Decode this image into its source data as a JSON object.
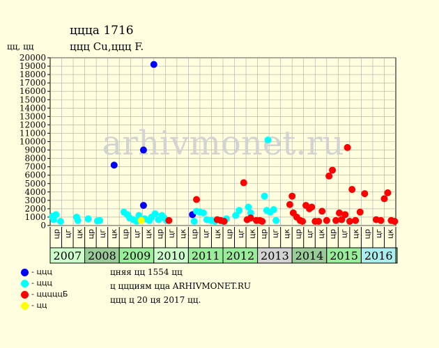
{
  "page": {
    "title_line1": "ццца 1716",
    "title_line2": "ццц Cu,ццц F.",
    "y_unit": "цц, цц",
    "watermark": "arhivmonet.ru"
  },
  "legend": [
    {
      "label": "- ццц",
      "color": "#0000FF"
    },
    {
      "label": "- ццц",
      "color": "#00FFFF"
    },
    {
      "label": "- цццццБ",
      "color": "#FF0000"
    },
    {
      "label": "- цц",
      "color": "#FFFF00"
    }
  ],
  "info": [
    "цняя цц 1554 цц",
    "ц ццциям цца ARHIVMONET.RU",
    "ццц ц 20 ця 2017 цц."
  ],
  "colors": {
    "background": "#FFFFE0",
    "watermark": "#D3D3D3",
    "grid": "#A9A9A9"
  },
  "chart_data": {
    "type": "scatter",
    "ylim": [
      0,
      20000
    ],
    "yticks": [
      0,
      1000,
      2000,
      3000,
      4000,
      5000,
      6000,
      7000,
      8000,
      9000,
      10000,
      11000,
      12000,
      13000,
      14000,
      15000,
      16000,
      17000,
      18000,
      19000,
      20000
    ],
    "grid": true,
    "legend_position": "bottom-left",
    "x_axis": {
      "months": [
        "цр",
        "цг",
        "цк",
        "цр",
        "цг",
        "цк",
        "цр",
        "цг",
        "цк",
        "цр",
        "цг",
        "цк",
        "цр",
        "цг",
        "цк",
        "цр",
        "цг",
        "цк",
        "цр",
        "цг",
        "цк",
        "цр",
        "цг",
        "цк",
        "цр",
        "цг",
        "цк",
        "цр",
        "цг",
        "цк"
      ],
      "years": [
        {
          "label": "2007",
          "color": "#CCFFCC"
        },
        {
          "label": "2008",
          "color": "#99CC99"
        },
        {
          "label": "2009",
          "color": "#99EE99"
        },
        {
          "label": "2010",
          "color": "#CCFFCC"
        },
        {
          "label": "2011",
          "color": "#99EE99"
        },
        {
          "label": "2012",
          "color": "#99EE99"
        },
        {
          "label": "2013",
          "color": "#D3D3D3"
        },
        {
          "label": "2014",
          "color": "#99CC99"
        },
        {
          "label": "2015",
          "color": "#99EE99"
        },
        {
          "label": "2016",
          "color": "#AAEEEE"
        }
      ]
    },
    "series": [
      {
        "color": "#0000FF",
        "points": [
          [
            5.55,
            7200
          ],
          [
            9.0,
            19200
          ],
          [
            8.1,
            9000
          ],
          [
            8.1,
            2400
          ],
          [
            12.35,
            1300
          ]
        ]
      },
      {
        "color": "#00FFFF",
        "points": [
          [
            0.2,
            1100
          ],
          [
            0.5,
            1300
          ],
          [
            0.3,
            700
          ],
          [
            0.9,
            500
          ],
          [
            2.3,
            1000
          ],
          [
            2.4,
            600
          ],
          [
            3.3,
            800
          ],
          [
            4.1,
            550
          ],
          [
            4.3,
            600
          ],
          [
            6.4,
            1600
          ],
          [
            6.7,
            1300
          ],
          [
            6.9,
            900
          ],
          [
            7.2,
            700
          ],
          [
            7.5,
            500
          ],
          [
            7.7,
            1200
          ],
          [
            8.2,
            800
          ],
          [
            8.6,
            600
          ],
          [
            8.8,
            1000
          ],
          [
            9.1,
            1400
          ],
          [
            9.4,
            700
          ],
          [
            9.7,
            1200
          ],
          [
            9.9,
            900
          ],
          [
            10.1,
            600
          ],
          [
            12.5,
            500
          ],
          [
            12.7,
            1700
          ],
          [
            13.0,
            1600
          ],
          [
            13.3,
            1500
          ],
          [
            13.6,
            700
          ],
          [
            14.0,
            600
          ],
          [
            14.3,
            500
          ],
          [
            15.0,
            500
          ],
          [
            15.3,
            800
          ],
          [
            16.1,
            1200
          ],
          [
            16.4,
            1800
          ],
          [
            17.2,
            2200
          ],
          [
            17.4,
            1500
          ],
          [
            18.6,
            3500
          ],
          [
            18.9,
            10200
          ],
          [
            18.8,
            1800
          ],
          [
            19.1,
            1600
          ],
          [
            19.4,
            1900
          ],
          [
            19.6,
            600
          ]
        ]
      },
      {
        "color": "#FF0000",
        "points": [
          [
            10.3,
            600
          ],
          [
            12.7,
            3100
          ],
          [
            14.5,
            700
          ],
          [
            14.8,
            600
          ],
          [
            15.1,
            500
          ],
          [
            16.8,
            5100
          ],
          [
            17.1,
            700
          ],
          [
            17.4,
            900
          ],
          [
            17.9,
            600
          ],
          [
            18.2,
            600
          ],
          [
            18.4,
            500
          ],
          [
            20.8,
            2500
          ],
          [
            21.0,
            3500
          ],
          [
            21.1,
            1500
          ],
          [
            21.4,
            1000
          ],
          [
            21.7,
            600
          ],
          [
            21.9,
            500
          ],
          [
            22.2,
            2400
          ],
          [
            22.5,
            2000
          ],
          [
            22.7,
            2200
          ],
          [
            23.0,
            500
          ],
          [
            23.3,
            500
          ],
          [
            23.6,
            1700
          ],
          [
            24.0,
            600
          ],
          [
            24.2,
            5900
          ],
          [
            24.5,
            6600
          ],
          [
            24.8,
            600
          ],
          [
            25.1,
            1500
          ],
          [
            25.3,
            700
          ],
          [
            25.6,
            1300
          ],
          [
            25.8,
            9300
          ],
          [
            26.0,
            500
          ],
          [
            26.2,
            4300
          ],
          [
            26.5,
            600
          ],
          [
            26.9,
            1600
          ],
          [
            27.3,
            3800
          ],
          [
            28.3,
            700
          ],
          [
            28.7,
            600
          ],
          [
            29.0,
            3200
          ],
          [
            29.3,
            3900
          ],
          [
            29.6,
            600
          ],
          [
            29.9,
            500
          ]
        ]
      },
      {
        "color": "#FFFF00",
        "points": [
          [
            7.9,
            600
          ]
        ]
      }
    ]
  }
}
